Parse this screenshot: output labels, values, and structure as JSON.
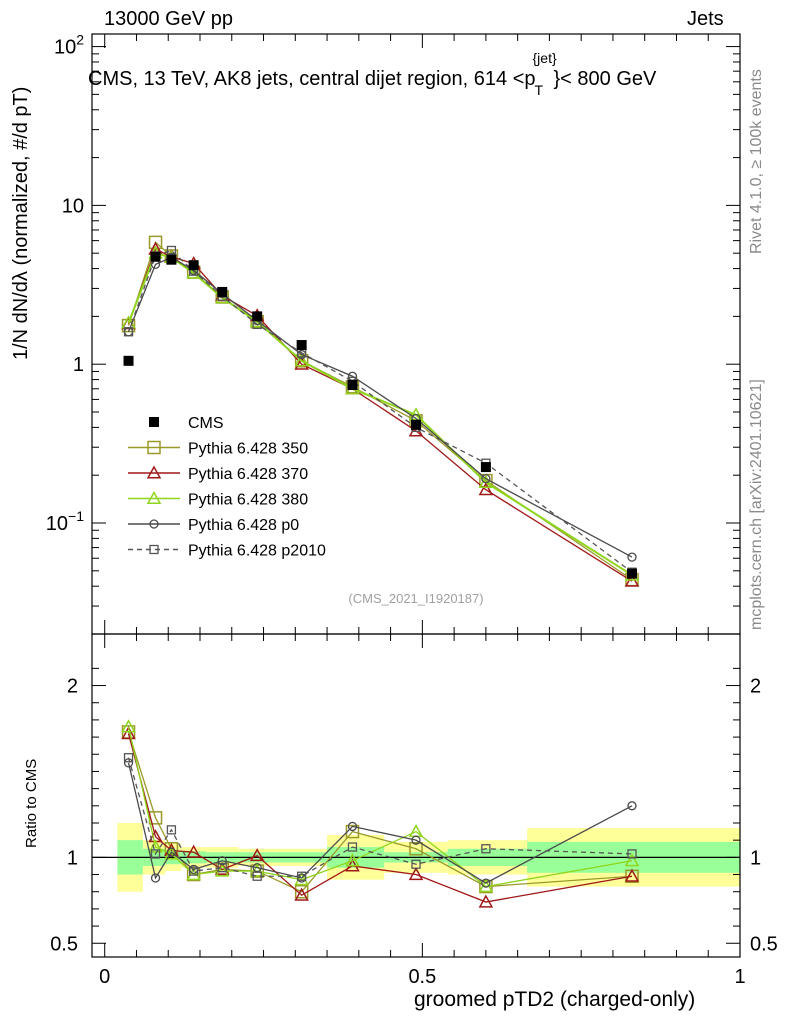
{
  "header": {
    "left": "13000 GeV pp",
    "right": "Jets",
    "title_main": "CMS, 13 TeV, AK8 jets, central dijet region, 614 <p",
    "title_sup": "{jet}",
    "title_sub": "T",
    "title_end": "}< 800 GeV"
  },
  "side": {
    "rivet": "Rivet 4.1.0, ≥ 100k events",
    "mcplots": "mcplots.cern.ch [arXiv:2401.10621]"
  },
  "axes": {
    "ylabel_main": "1/N dN/dλ (normalized, #/d pT)",
    "ylabel_ratio": "Ratio to CMS",
    "xlabel": "groomed pTD2 (charged-only)",
    "watermark": "(CMS_2021_I1920187)"
  },
  "chart_data": [
    {
      "type": "line",
      "role": "main",
      "yscale": "log",
      "ylim": [
        0.02,
        120
      ],
      "xlim": [
        -0.02,
        1.0
      ],
      "x_ticks": [
        0,
        0.5,
        1
      ],
      "x_tick_labels": [
        "0",
        "0.5",
        "1"
      ],
      "y_ticks": [
        0.1,
        1,
        10,
        100
      ],
      "y_tick_labels": [
        "10^-1",
        "1",
        "10",
        "10^2"
      ],
      "x": [
        0.0375,
        0.08,
        0.105,
        0.14,
        0.185,
        0.24,
        0.31,
        0.39,
        0.49,
        0.6,
        0.83
      ],
      "bin_edges": [
        0.02,
        0.06,
        0.095,
        0.12,
        0.16,
        0.21,
        0.27,
        0.35,
        0.44,
        0.54,
        0.665,
        1.0
      ],
      "series": [
        {
          "name": "CMS",
          "style": "data",
          "color": "#000000",
          "values": [
            1.05,
            4.75,
            4.55,
            4.2,
            2.85,
            2.0,
            1.32,
            0.74,
            0.415,
            0.225,
            0.048
          ]
        },
        {
          "name": "Pythia 6.428 350",
          "style": "square-open",
          "color": "#9a9a2a",
          "values": [
            1.75,
            5.85,
            4.8,
            3.8,
            2.65,
            1.85,
            1.05,
            0.72,
            0.44,
            0.185,
            0.044
          ]
        },
        {
          "name": "Pythia 6.428 370",
          "style": "triangle-open",
          "color": "#a01818",
          "values": [
            1.8,
            5.3,
            4.75,
            4.3,
            2.7,
            2.02,
            1.0,
            0.7,
            0.38,
            0.162,
            0.043
          ]
        },
        {
          "name": "Pythia 6.428 380",
          "style": "triangle-open",
          "color": "#8ed51c",
          "values": [
            1.82,
            5.0,
            4.7,
            3.75,
            2.62,
            1.85,
            1.05,
            0.7,
            0.48,
            0.18,
            0.047
          ]
        },
        {
          "name": "Pythia 6.428 p0",
          "style": "circle-open",
          "color": "#4a4a4a",
          "values": [
            1.6,
            4.25,
            4.7,
            3.9,
            2.78,
            1.88,
            1.15,
            0.84,
            0.455,
            0.19,
            0.061
          ]
        },
        {
          "name": "Pythia 6.428 p2010",
          "style": "square-dashed",
          "color": "#555555",
          "values": [
            1.6,
            4.8,
            5.2,
            3.85,
            2.68,
            1.78,
            1.18,
            0.78,
            0.4,
            0.238,
            0.049
          ]
        }
      ]
    },
    {
      "type": "line",
      "role": "ratio",
      "ylim": [
        0.42,
        2.3
      ],
      "y_ticks": [
        0.5,
        1,
        2
      ],
      "y_tick_labels": [
        "0.5",
        "1",
        "2"
      ],
      "band_stat_halfwidth": [
        0.1,
        0.05,
        0.04,
        0.035,
        0.03,
        0.03,
        0.03,
        0.06,
        0.03,
        0.05,
        0.09
      ],
      "band_syst_halfwidth": [
        0.2,
        0.1,
        0.08,
        0.06,
        0.06,
        0.05,
        0.05,
        0.13,
        0.09,
        0.1,
        0.17
      ],
      "series": [
        {
          "name": "Pythia 6.428 350",
          "values": [
            1.73,
            1.23,
            1.05,
            0.9,
            0.93,
            0.92,
            0.8,
            1.15,
            1.05,
            0.83,
            0.89
          ]
        },
        {
          "name": "Pythia 6.428 370",
          "values": [
            1.72,
            1.12,
            1.04,
            1.03,
            0.93,
            1.01,
            0.78,
            0.95,
            0.9,
            0.74,
            0.89
          ]
        },
        {
          "name": "Pythia 6.428 380",
          "values": [
            1.76,
            1.06,
            1.02,
            0.9,
            0.92,
            0.92,
            0.87,
            0.98,
            1.15,
            0.83,
            0.98
          ]
        },
        {
          "name": "Pythia 6.428 p0",
          "values": [
            1.55,
            0.88,
            1.03,
            0.93,
            0.98,
            0.94,
            0.88,
            1.18,
            1.1,
            0.85,
            1.3
          ]
        },
        {
          "name": "Pythia 6.428 p2010",
          "values": [
            1.58,
            1.02,
            1.16,
            0.92,
            0.94,
            0.89,
            0.89,
            1.06,
            0.96,
            1.05,
            1.02
          ]
        }
      ]
    }
  ]
}
